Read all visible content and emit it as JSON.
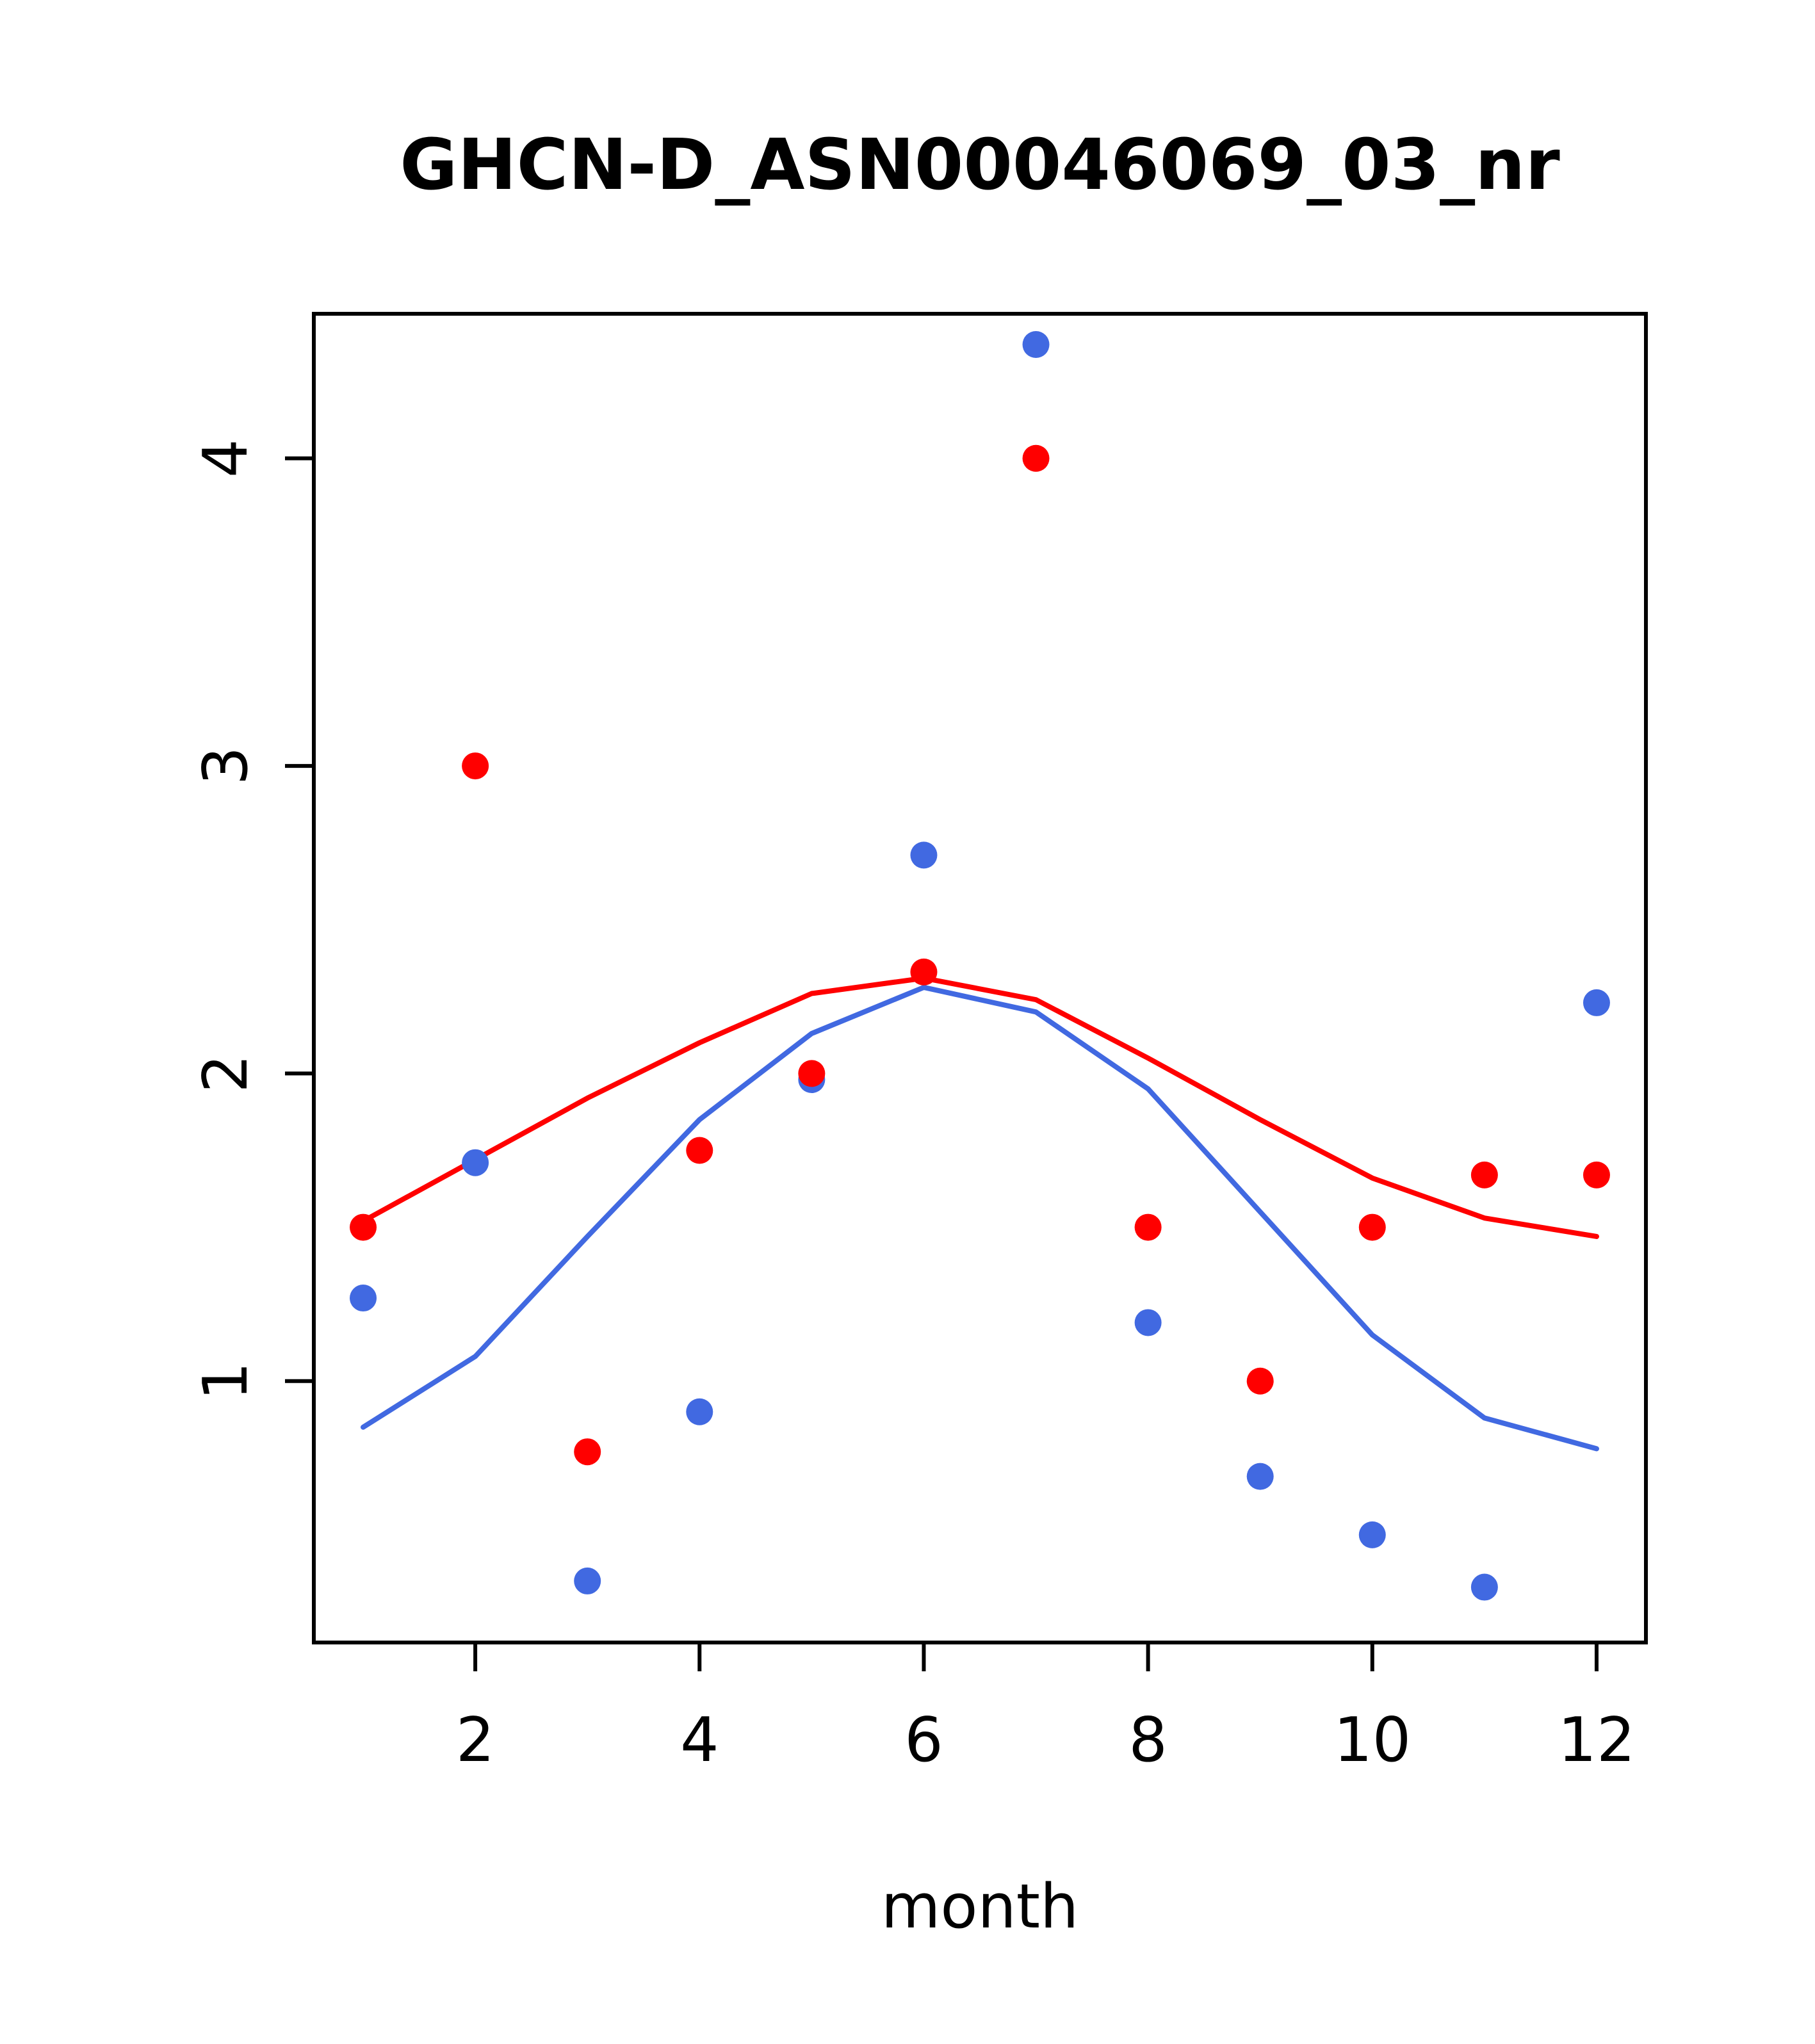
{
  "chart_data": {
    "type": "scatter",
    "title": "GHCN-D_ASN00046069_03_nr",
    "xlabel": "month",
    "ylabel": "",
    "xlim": [
      0.56,
      12.44
    ],
    "ylim": [
      0.15,
      4.47
    ],
    "x_ticks": [
      2,
      4,
      6,
      8,
      10,
      12
    ],
    "y_ticks": [
      1,
      2,
      3,
      4
    ],
    "grid": false,
    "legend": "none",
    "x": [
      1,
      2,
      3,
      4,
      5,
      6,
      7,
      8,
      9,
      10,
      11,
      12
    ],
    "series": [
      {
        "name": "red-trend-line",
        "kind": "line",
        "color": "#ff0000",
        "values": [
          1.52,
          1.72,
          1.92,
          2.1,
          2.26,
          2.31,
          2.24,
          2.05,
          1.85,
          1.66,
          1.53,
          1.47
        ]
      },
      {
        "name": "blue-trend-line",
        "kind": "line",
        "color": "#4169e1",
        "values": [
          0.85,
          1.08,
          1.47,
          1.85,
          2.13,
          2.28,
          2.2,
          1.95,
          1.55,
          1.15,
          0.88,
          0.78
        ]
      },
      {
        "name": "blue-points",
        "kind": "points",
        "color": "#4169e1",
        "values": [
          1.27,
          1.71,
          0.35,
          0.9,
          1.98,
          2.71,
          4.37,
          1.19,
          0.69,
          0.5,
          0.33,
          2.23
        ]
      },
      {
        "name": "red-points",
        "kind": "points",
        "color": "#ff0000",
        "values": [
          1.5,
          3.0,
          0.77,
          1.75,
          2.0,
          2.33,
          4.0,
          1.5,
          1.0,
          1.5,
          1.67,
          1.67
        ]
      }
    ]
  }
}
